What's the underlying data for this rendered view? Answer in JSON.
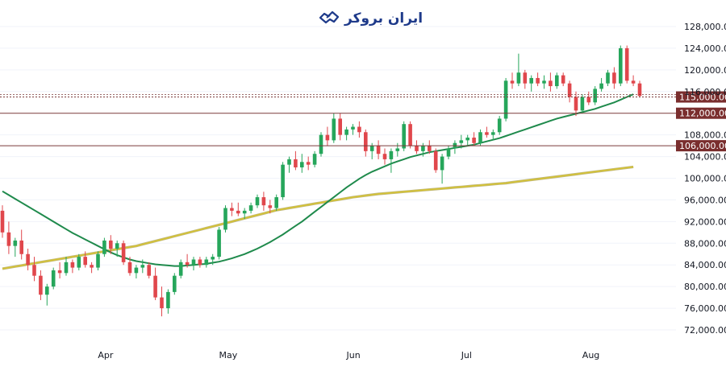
{
  "logo": {
    "text": "ایران بروکر",
    "icon": "handshake-icon",
    "color": "#1e3a8a"
  },
  "colors": {
    "up": "#26a65b",
    "down": "#e0474c",
    "ma_fast": "#1f8a4c",
    "ma_slow": "#d4c236",
    "level_line": "#7a3a3a",
    "level_tag": "#7a2e2e",
    "grid": "#f0f3fa"
  },
  "chart_data": {
    "type": "candlestick",
    "x_labels": [
      "Apr",
      "May",
      "Jun",
      "Jul",
      "Aug"
    ],
    "y_ticks": [
      "72,000.00",
      "76,000.00",
      "80,000.00",
      "84,000.00",
      "88,000.00",
      "92,000.00",
      "96,000.00",
      "100,000.00",
      "104,000.00",
      "108,000.00",
      "116,000.00",
      "120,000.00",
      "124,000.00",
      "128,000.00"
    ],
    "ylim": [
      70000,
      130000
    ],
    "levels": [
      {
        "value": 115000,
        "label": "115,000.00"
      },
      {
        "value": 112000,
        "label": "112,000.00"
      },
      {
        "value": 106000,
        "label": "106,000.00"
      }
    ],
    "candles": [
      [
        94000,
        95000,
        89000,
        90000
      ],
      [
        90000,
        92000,
        86000,
        87500
      ],
      [
        87500,
        89000,
        85500,
        88500
      ],
      [
        88500,
        90500,
        85000,
        86000
      ],
      [
        86000,
        87000,
        83000,
        84000
      ],
      [
        84000,
        85500,
        81000,
        82000
      ],
      [
        82000,
        83000,
        77500,
        78500
      ],
      [
        78500,
        80500,
        76500,
        80000
      ],
      [
        80000,
        83500,
        79500,
        83000
      ],
      [
        83000,
        84500,
        81500,
        82500
      ],
      [
        82500,
        85500,
        82000,
        84500
      ],
      [
        84500,
        85000,
        82500,
        83500
      ],
      [
        83500,
        86000,
        83000,
        85500
      ],
      [
        85500,
        86500,
        83500,
        84000
      ],
      [
        84000,
        84500,
        82500,
        83500
      ],
      [
        83500,
        86500,
        83000,
        86000
      ],
      [
        86000,
        89000,
        85500,
        88500
      ],
      [
        88500,
        89500,
        86000,
        87000
      ],
      [
        87000,
        88500,
        85500,
        88000
      ],
      [
        88000,
        88500,
        84000,
        84500
      ],
      [
        84500,
        85500,
        82000,
        82500
      ],
      [
        82500,
        84000,
        81500,
        83500
      ],
      [
        83500,
        85000,
        82500,
        84000
      ],
      [
        84000,
        84500,
        81500,
        82000
      ],
      [
        82000,
        83500,
        77500,
        78000
      ],
      [
        78000,
        80000,
        74500,
        76000
      ],
      [
        76000,
        79500,
        75000,
        79000
      ],
      [
        79000,
        82500,
        78500,
        82000
      ],
      [
        82000,
        85000,
        81500,
        84500
      ],
      [
        84500,
        86000,
        83500,
        84000
      ],
      [
        84000,
        85500,
        83000,
        85000
      ],
      [
        85000,
        85500,
        83500,
        84000
      ],
      [
        84000,
        85500,
        83500,
        85000
      ],
      [
        85000,
        86000,
        84000,
        85500
      ],
      [
        85500,
        91000,
        85000,
        90500
      ],
      [
        90500,
        95000,
        90000,
        94500
      ],
      [
        94500,
        95500,
        93000,
        94000
      ],
      [
        94000,
        95500,
        93000,
        93500
      ],
      [
        93500,
        94500,
        92500,
        94000
      ],
      [
        94000,
        95500,
        93500,
        95000
      ],
      [
        95000,
        97000,
        94500,
        96500
      ],
      [
        96500,
        97500,
        94000,
        95000
      ],
      [
        95000,
        96000,
        93500,
        94500
      ],
      [
        94500,
        97000,
        94000,
        96500
      ],
      [
        96500,
        103000,
        96000,
        102500
      ],
      [
        102500,
        104000,
        101000,
        103500
      ],
      [
        103500,
        105000,
        101500,
        102000
      ],
      [
        102000,
        104500,
        101000,
        103000
      ],
      [
        103000,
        104000,
        101500,
        102500
      ],
      [
        102500,
        105000,
        102000,
        104500
      ],
      [
        104500,
        108500,
        104000,
        108000
      ],
      [
        108000,
        109500,
        106000,
        107000
      ],
      [
        107000,
        112000,
        106500,
        111000
      ],
      [
        111000,
        112000,
        107000,
        108000
      ],
      [
        108000,
        109500,
        107000,
        109000
      ],
      [
        109000,
        110000,
        108000,
        109500
      ],
      [
        109500,
        110500,
        107500,
        108500
      ],
      [
        108500,
        109000,
        104000,
        105000
      ],
      [
        105000,
        106500,
        103500,
        106000
      ],
      [
        106000,
        107000,
        103500,
        104500
      ],
      [
        104500,
        105500,
        102500,
        103500
      ],
      [
        103500,
        105500,
        101000,
        105000
      ],
      [
        105000,
        106500,
        104000,
        105500
      ],
      [
        105500,
        110500,
        105000,
        110000
      ],
      [
        110000,
        110500,
        105500,
        106000
      ],
      [
        106000,
        107000,
        104500,
        105000
      ],
      [
        105000,
        106500,
        104000,
        106000
      ],
      [
        106000,
        107000,
        104500,
        105000
      ],
      [
        105000,
        105500,
        101000,
        101500
      ],
      [
        101500,
        104500,
        99000,
        104000
      ],
      [
        104000,
        106000,
        103500,
        105500
      ],
      [
        105500,
        107000,
        104500,
        106500
      ],
      [
        106500,
        108000,
        105500,
        107000
      ],
      [
        107000,
        108000,
        106000,
        107500
      ],
      [
        107500,
        108500,
        106000,
        106500
      ],
      [
        106500,
        109000,
        106000,
        108500
      ],
      [
        108500,
        109500,
        107500,
        108000
      ],
      [
        108000,
        109000,
        107000,
        108500
      ],
      [
        108500,
        111500,
        108000,
        111000
      ],
      [
        111000,
        118500,
        110500,
        118000
      ],
      [
        118000,
        119500,
        116500,
        117500
      ],
      [
        117500,
        123000,
        117000,
        119500
      ],
      [
        119500,
        120000,
        116500,
        117500
      ],
      [
        117500,
        119000,
        116000,
        118500
      ],
      [
        118500,
        119500,
        117000,
        117500
      ],
      [
        117500,
        119000,
        116500,
        118000
      ],
      [
        118000,
        119500,
        116000,
        117000
      ],
      [
        117000,
        119500,
        116500,
        119000
      ],
      [
        119000,
        119500,
        117000,
        117500
      ],
      [
        117500,
        118000,
        114000,
        115000
      ],
      [
        115000,
        116000,
        111500,
        112500
      ],
      [
        112500,
        115500,
        112000,
        115000
      ],
      [
        115000,
        116000,
        113500,
        114000
      ],
      [
        114000,
        117000,
        113500,
        116500
      ],
      [
        116500,
        118500,
        116000,
        117500
      ],
      [
        117500,
        120000,
        117000,
        119500
      ],
      [
        119500,
        120500,
        116500,
        117500
      ],
      [
        117500,
        124500,
        117000,
        124000
      ],
      [
        124000,
        124500,
        117500,
        118000
      ],
      [
        118000,
        119000,
        117000,
        117500
      ],
      [
        117500,
        118000,
        115000,
        115200
      ]
    ],
    "series": [
      {
        "values": [
          97600,
          96900,
          96200,
          95500,
          94800,
          94100,
          93400,
          92700,
          92000,
          91300,
          90600,
          89900,
          89300,
          88700,
          88100,
          87500,
          86900,
          86300,
          85800,
          85400,
          85000,
          84700,
          84500,
          84300,
          84100,
          84000,
          83900,
          83800,
          83800,
          83900,
          84000,
          84100,
          84200,
          84400,
          84600,
          84900,
          85200,
          85600,
          86000,
          86500,
          87000,
          87600,
          88200,
          88900,
          89600,
          90400,
          91200,
          92000,
          92900,
          93800,
          94700,
          95600,
          96500,
          97400,
          98300,
          99100,
          99900,
          100600,
          101200,
          101700,
          102200,
          102700,
          103100,
          103500,
          103900,
          104200,
          104500,
          104800,
          105000,
          105200,
          105400,
          105600,
          105800,
          106000,
          106200,
          106500,
          106800,
          107100,
          107400,
          107800,
          108200,
          108600,
          109000,
          109400,
          109800,
          110200,
          110600,
          111000,
          111300,
          111600,
          111900,
          112200,
          112500,
          112800,
          113200,
          113600,
          114000,
          114500,
          115000,
          115500
        ]
      },
      {
        "values": [
          83300,
          83500,
          83700,
          83900,
          84100,
          84300,
          84500,
          84700,
          84900,
          85100,
          85300,
          85500,
          85700,
          85900,
          86100,
          86300,
          86500,
          86700,
          86900,
          87100,
          87300,
          87500,
          87800,
          88100,
          88400,
          88700,
          89000,
          89300,
          89600,
          89900,
          90200,
          90500,
          90800,
          91100,
          91400,
          91700,
          92000,
          92300,
          92600,
          92900,
          93200,
          93500,
          93800,
          94100,
          94300,
          94500,
          94700,
          94900,
          95100,
          95300,
          95500,
          95700,
          95900,
          96100,
          96300,
          96500,
          96650,
          96800,
          96950,
          97100,
          97200,
          97300,
          97400,
          97500,
          97600,
          97700,
          97800,
          97900,
          98000,
          98100,
          98200,
          98300,
          98400,
          98500,
          98600,
          98700,
          98800,
          98900,
          99000,
          99100,
          99250,
          99400,
          99550,
          99700,
          99850,
          100000,
          100150,
          100300,
          100450,
          100600,
          100750,
          100900,
          101050,
          101200,
          101350,
          101500,
          101650,
          101800,
          101950,
          102100
        ]
      }
    ]
  }
}
